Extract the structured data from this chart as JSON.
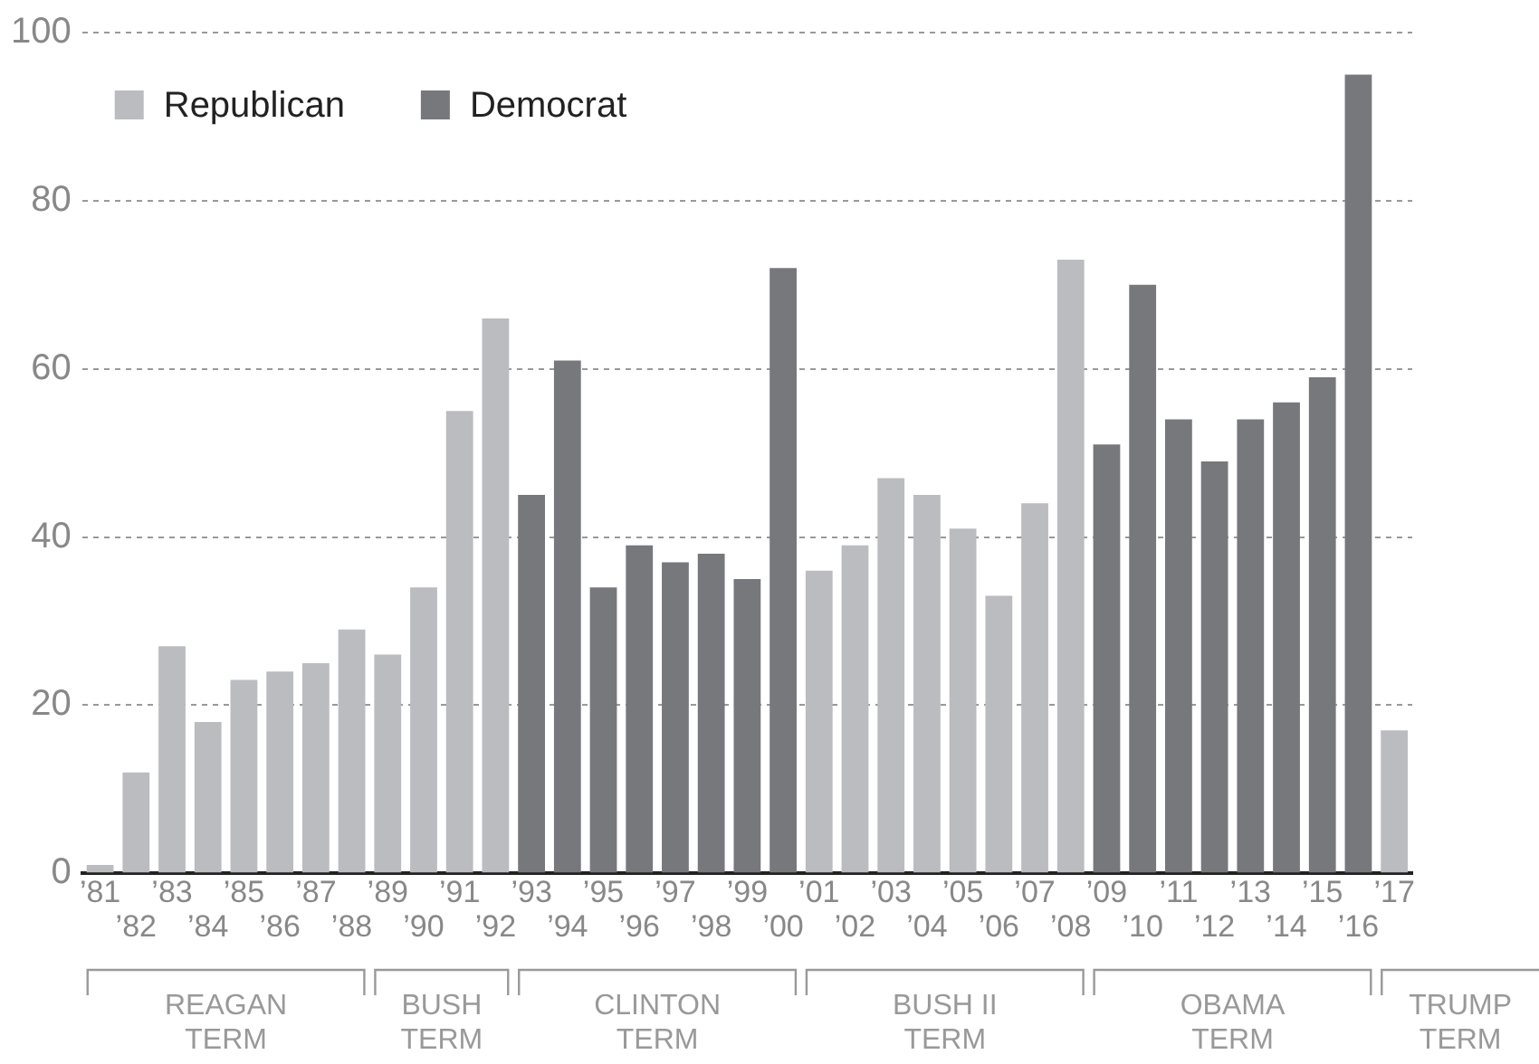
{
  "chart_data": {
    "type": "bar",
    "stacked": true,
    "categories": [
      "’81",
      "’82",
      "’83",
      "’84",
      "’85",
      "’86",
      "’87",
      "’88",
      "’89",
      "’90",
      "’91",
      "’92",
      "’93",
      "’94",
      "’95",
      "’96",
      "’97",
      "’98",
      "’99",
      "’00",
      "’01",
      "’02",
      "’03",
      "’04",
      "’05",
      "’06",
      "’07",
      "’08",
      "’09",
      "’10",
      "’11",
      "’12",
      "’13",
      "’14",
      "’15",
      "’16",
      "’17"
    ],
    "series": [
      {
        "name": "Republican",
        "color": "#bbbcc0",
        "values": [
          1,
          12,
          27,
          18,
          23,
          24,
          25,
          29,
          26,
          34,
          55,
          66,
          null,
          null,
          null,
          null,
          null,
          null,
          null,
          null,
          36,
          39,
          47,
          45,
          41,
          33,
          44,
          73,
          null,
          null,
          null,
          null,
          null,
          null,
          null,
          null,
          17
        ]
      },
      {
        "name": "Democrat",
        "color": "#77787c",
        "values": [
          null,
          null,
          null,
          null,
          null,
          null,
          null,
          null,
          null,
          null,
          null,
          null,
          45,
          61,
          34,
          39,
          37,
          38,
          35,
          72,
          null,
          null,
          null,
          null,
          null,
          null,
          null,
          null,
          51,
          70,
          54,
          49,
          54,
          56,
          59,
          95,
          null
        ]
      }
    ],
    "ylim": [
      0,
      100
    ],
    "yticks": [
      0,
      20,
      40,
      60,
      80,
      100
    ],
    "grid": "y",
    "legend": "top left",
    "annotations": [
      "REAGAN TERM",
      "BUSH TERM",
      "CLINTON TERM",
      "BUSH II TERM",
      "OBAMA TERM",
      "TRUMP TERM"
    ]
  }
}
